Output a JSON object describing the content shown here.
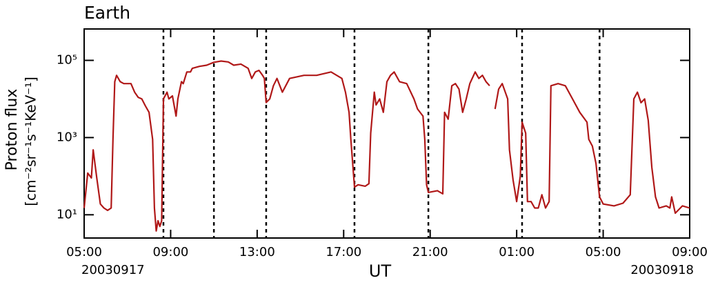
{
  "chart_data": {
    "type": "line",
    "title": "Earth",
    "ylabel": [
      "Proton flux",
      "[cm⁻²sr⁻¹s⁻¹KeV⁻¹]"
    ],
    "xlabel": "UT",
    "date_labels": [
      "20030917",
      "20030918"
    ],
    "ylog": true,
    "grid": false,
    "xlim": [
      "2003-09-17T05:00",
      "2003-09-18T09:00"
    ],
    "ylim": [
      2.5,
      650000
    ],
    "xticks": [
      {
        "value": "2003-09-17T05:00",
        "label": "05:00"
      },
      {
        "value": "2003-09-17T09:00",
        "label": "09:00"
      },
      {
        "value": "2003-09-17T13:00",
        "label": "13:00"
      },
      {
        "value": "2003-09-17T17:00",
        "label": "17:00"
      },
      {
        "value": "2003-09-17T21:00",
        "label": "21:00"
      },
      {
        "value": "2003-09-18T01:00",
        "label": "01:00"
      },
      {
        "value": "2003-09-18T05:00",
        "label": "05:00"
      },
      {
        "value": "2003-09-18T09:00",
        "label": "09:00"
      }
    ],
    "yticks": [
      {
        "value": 10,
        "label": "10¹"
      },
      {
        "value": 1000,
        "label": "10³"
      },
      {
        "value": 100000,
        "label": "10⁵"
      }
    ],
    "vlines": [
      "2003-09-17T08:40",
      "2003-09-17T11:00",
      "2003-09-17T13:25",
      "2003-09-17T17:30",
      "2003-09-17T20:55",
      "2003-09-18T01:15",
      "2003-09-18T04:50"
    ],
    "series": [
      {
        "color": "#b01818",
        "x": [
          "2003-09-17T05:00",
          "2003-09-17T05:10",
          "2003-09-17T05:20",
          "2003-09-17T05:25",
          "2003-09-17T05:35",
          "2003-09-17T05:45",
          "2003-09-17T05:55",
          "2003-09-17T06:05",
          "2003-09-17T06:15",
          "2003-09-17T06:20",
          "2003-09-17T06:25",
          "2003-09-17T06:30",
          "2003-09-17T06:40",
          "2003-09-17T06:50",
          "2003-09-17T07:10",
          "2003-09-17T07:20",
          "2003-09-17T07:30",
          "2003-09-17T07:40",
          "2003-09-17T07:50",
          "2003-09-17T08:00",
          "2003-09-17T08:10",
          "2003-09-17T08:15",
          "2003-09-17T08:20",
          "2003-09-17T08:25",
          "2003-09-17T08:30",
          "2003-09-17T08:35",
          "2003-09-17T08:40",
          "2003-09-17T08:50",
          "2003-09-17T08:55",
          "2003-09-17T09:05",
          "2003-09-17T09:15",
          "2003-09-17T09:20",
          "2003-09-17T09:30",
          "2003-09-17T09:35",
          "2003-09-17T09:45",
          "2003-09-17T09:55",
          "2003-09-17T10:00",
          "2003-09-17T10:20",
          "2003-09-17T10:40",
          "2003-09-17T11:00",
          "2003-09-17T11:20",
          "2003-09-17T11:40",
          "2003-09-17T11:55",
          "2003-09-17T12:15",
          "2003-09-17T12:35",
          "2003-09-17T12:45",
          "2003-09-17T12:55",
          "2003-09-17T13:05",
          "2003-09-17T13:15",
          "2003-09-17T13:20",
          "2003-09-17T13:25",
          "2003-09-17T13:35",
          "2003-09-17T13:45",
          "2003-09-17T13:55",
          "2003-09-17T14:10",
          "2003-09-17T14:30",
          "2003-09-17T15:10",
          "2003-09-17T15:45",
          "2003-09-17T16:25",
          "2003-09-17T16:55",
          "2003-09-17T17:05",
          "2003-09-17T17:15",
          "2003-09-17T17:20",
          "2003-09-17T17:30",
          "2003-09-17T17:40",
          "2003-09-17T18:00",
          "2003-09-17T18:10",
          "2003-09-17T18:15",
          "2003-09-17T18:25",
          "2003-09-17T18:30",
          "2003-09-17T18:40",
          "2003-09-17T18:50",
          "2003-09-17T19:00",
          "2003-09-17T19:10",
          "2003-09-17T19:20",
          "2003-09-17T19:35",
          "2003-09-17T19:55",
          "2003-09-17T20:15",
          "2003-09-17T20:25",
          "2003-09-17T20:40",
          "2003-09-17T20:45",
          "2003-09-17T20:50",
          "2003-09-17T20:55",
          "2003-09-17T21:20",
          "2003-09-17T21:35",
          "2003-09-17T21:40",
          "2003-09-17T21:50",
          "2003-09-17T22:00",
          "2003-09-17T22:10",
          "2003-09-17T22:20",
          "2003-09-17T22:30",
          "2003-09-17T22:40",
          "2003-09-17T22:50",
          "2003-09-17T23:05",
          "2003-09-17T23:15",
          "2003-09-17T23:25",
          "2003-09-17T23:35",
          "2003-09-17T23:45",
          "2003-09-17T23:50",
          "2003-09-18T00:00",
          "2003-09-18T00:10",
          "2003-09-18T00:20",
          "2003-09-18T00:35",
          "2003-09-18T00:40",
          "2003-09-18T00:50",
          "2003-09-18T01:00",
          "2003-09-18T01:10",
          "2003-09-18T01:15",
          "2003-09-18T01:25",
          "2003-09-18T01:30",
          "2003-09-18T01:40",
          "2003-09-18T01:50",
          "2003-09-18T02:00",
          "2003-09-18T02:10",
          "2003-09-18T02:20",
          "2003-09-18T02:30",
          "2003-09-18T02:35",
          "2003-09-18T02:55",
          "2003-09-18T03:15",
          "2003-09-18T03:35",
          "2003-09-18T03:55",
          "2003-09-18T04:15",
          "2003-09-18T04:20",
          "2003-09-18T04:30",
          "2003-09-18T04:40",
          "2003-09-18T04:50",
          "2003-09-18T05:00",
          "2003-09-18T05:30",
          "2003-09-18T05:55",
          "2003-09-18T06:15",
          "2003-09-18T06:25",
          "2003-09-18T06:35",
          "2003-09-18T06:45",
          "2003-09-18T06:55",
          "2003-09-18T07:05",
          "2003-09-18T07:15",
          "2003-09-18T07:25",
          "2003-09-18T07:35",
          "2003-09-18T07:55",
          "2003-09-18T08:05",
          "2003-09-18T08:10",
          "2003-09-18T08:20",
          "2003-09-18T08:40",
          "2003-09-18T09:00"
        ],
        "values": [
          15,
          120,
          90,
          480,
          90,
          19,
          15,
          13,
          15,
          900,
          28000,
          41000,
          28000,
          25000,
          25000,
          15000,
          11000,
          10000,
          6600,
          4500,
          900,
          15,
          3.8,
          7,
          5,
          7,
          10000,
          15000,
          10000,
          12000,
          3600,
          10000,
          28000,
          25000,
          50000,
          50000,
          62000,
          70000,
          75000,
          89000,
          96000,
          91000,
          75000,
          80000,
          62000,
          34000,
          50000,
          55000,
          41000,
          34000,
          8100,
          10000,
          22000,
          34000,
          15000,
          34000,
          41000,
          41000,
          50000,
          34000,
          15000,
          4500,
          900,
          52,
          60,
          55,
          64,
          1300,
          15000,
          7000,
          10000,
          4500,
          28000,
          41000,
          50000,
          28000,
          25000,
          10000,
          5500,
          3600,
          900,
          60,
          38,
          42,
          35,
          4500,
          3000,
          22000,
          25000,
          18000,
          4500,
          10000,
          25000,
          50000,
          34000,
          41000,
          28000,
          22000,
          null,
          5500,
          18000,
          25000,
          10000,
          480,
          80,
          22,
          100,
          2500,
          1300,
          22,
          22,
          15,
          15,
          33,
          15,
          22,
          22000,
          25000,
          22000,
          10000,
          4500,
          2500,
          900,
          600,
          215,
          29,
          19,
          17,
          20,
          33,
          10000,
          15000,
          8000,
          10000,
          2800,
          170,
          29,
          15,
          17,
          15,
          29,
          11,
          17,
          15
        ]
      }
    ]
  }
}
